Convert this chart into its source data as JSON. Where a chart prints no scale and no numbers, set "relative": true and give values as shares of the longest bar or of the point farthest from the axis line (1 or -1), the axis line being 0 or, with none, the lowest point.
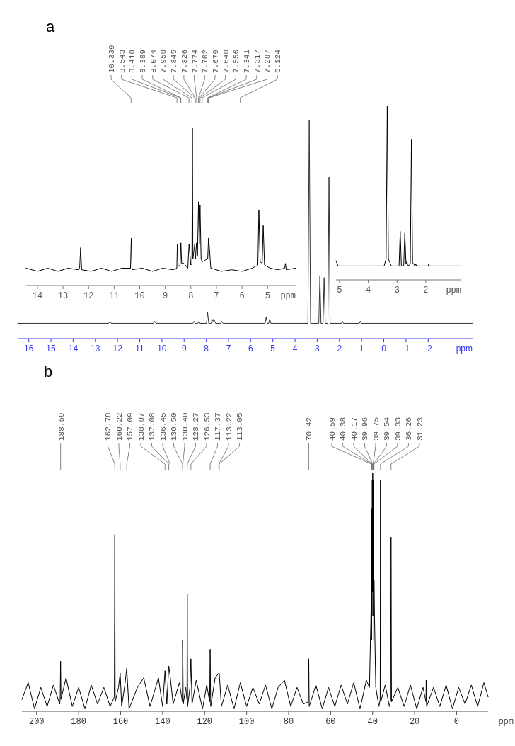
{
  "chart_data": [
    {
      "type": "line",
      "title": "a",
      "relative": true,
      "tick_labels": "x",
      "xlabel": "ppm",
      "xlim": [
        16.5,
        -4
      ],
      "xticks": [
        16,
        15,
        14,
        13,
        12,
        11,
        10,
        9,
        8,
        7,
        6,
        5,
        4,
        3,
        2,
        1,
        0,
        -1,
        -2
      ],
      "series": [
        {
          "color": "#333333",
          "x": [
            16.5,
            12.4,
            12.34,
            12.28,
            10.39,
            10.33,
            10.27,
            8.6,
            8.55,
            8.5,
            8.38,
            8.33,
            8.28,
            7.99,
            7.94,
            7.89,
            7.78,
            7.74,
            7.7,
            7.66,
            7.62,
            7.58,
            7.35,
            7.3,
            7.25,
            5.35,
            5.3,
            5.25,
            5.19,
            5.14,
            5.09,
            3.42,
            3.36,
            3.3,
            2.93,
            2.88,
            2.83,
            2.74,
            2.69,
            2.64,
            2.52,
            2.47,
            2.42,
            1.9,
            1.86,
            1.82,
            1.1,
            1.06,
            1.02,
            -4
          ],
          "values": [
            0.07,
            0.07,
            0.08,
            0.07,
            0.07,
            0.08,
            0.07,
            0.07,
            0.08,
            0.07,
            0.07,
            0.08,
            0.07,
            0.07,
            0.12,
            0.07,
            0.07,
            0.09,
            0.08,
            0.09,
            0.08,
            0.07,
            0.07,
            0.08,
            0.07,
            0.07,
            0.1,
            0.07,
            0.07,
            0.09,
            0.07,
            0.07,
            1.0,
            0.07,
            0.07,
            0.29,
            0.07,
            0.07,
            0.28,
            0.07,
            0.07,
            0.74,
            0.07,
            0.07,
            0.08,
            0.07,
            0.07,
            0.08,
            0.07,
            0.07
          ]
        }
      ]
    },
    {
      "type": "line",
      "relative": true,
      "tick_labels": "x",
      "xlabel": "ppm",
      "xlim": [
        14.44,
        3.9
      ],
      "xticks": [
        14,
        13,
        12,
        11,
        10,
        9,
        8,
        7,
        6,
        5
      ],
      "series": [
        {
          "color": "#000000",
          "x": [
            14.44,
            14.0,
            13.6,
            13.2,
            12.8,
            12.4,
            12.35,
            12.31,
            12.27,
            11.9,
            11.5,
            11.1,
            10.7,
            10.36,
            10.33,
            10.3,
            9.9,
            9.5,
            9.1,
            8.7,
            8.55,
            8.53,
            8.5,
            8.42,
            8.39,
            8.36,
            8.27,
            8.12,
            8.07,
            8.0,
            7.96,
            7.94,
            7.92,
            7.85,
            7.82,
            7.78,
            7.74,
            7.7,
            7.67,
            7.64,
            7.6,
            7.56,
            7.34,
            7.31,
            7.28,
            7.22,
            6.8,
            6.4,
            6.0,
            5.6,
            5.38,
            5.34,
            5.29,
            5.21,
            5.17,
            5.12,
            4.9,
            4.6,
            4.33,
            4.3,
            4.27,
            3.9
          ],
          "values": [
            0.11,
            0.09,
            0.11,
            0.09,
            0.11,
            0.1,
            0.11,
            0.24,
            0.1,
            0.09,
            0.11,
            0.09,
            0.11,
            0.11,
            0.3,
            0.1,
            0.11,
            0.09,
            0.11,
            0.1,
            0.11,
            0.26,
            0.12,
            0.13,
            0.27,
            0.14,
            0.14,
            0.11,
            0.26,
            0.13,
            0.14,
            1.0,
            0.17,
            0.26,
            0.17,
            0.27,
            0.19,
            0.53,
            0.26,
            0.51,
            0.17,
            0.15,
            0.17,
            0.3,
            0.25,
            0.11,
            0.09,
            0.1,
            0.09,
            0.11,
            0.13,
            0.48,
            0.15,
            0.14,
            0.38,
            0.13,
            0.11,
            0.1,
            0.11,
            0.14,
            0.1,
            0.11
          ]
        }
      ],
      "annotations": [
        {
          "text": "10.339",
          "x": 10.339
        },
        {
          "text": "8.543",
          "x": 8.543
        },
        {
          "text": "8.410",
          "x": 8.41
        },
        {
          "text": "8.389",
          "x": 8.389
        },
        {
          "text": "8.074",
          "x": 8.074
        },
        {
          "text": "7.958",
          "x": 7.958
        },
        {
          "text": "7.845",
          "x": 7.845
        },
        {
          "text": "7.826",
          "x": 7.826
        },
        {
          "text": "7.774",
          "x": 7.774
        },
        {
          "text": "7.702",
          "x": 7.702
        },
        {
          "text": "7.679",
          "x": 7.679
        },
        {
          "text": "7.640",
          "x": 7.64
        },
        {
          "text": "7.556",
          "x": 7.556
        },
        {
          "text": "7.341",
          "x": 7.341
        },
        {
          "text": "7.317",
          "x": 7.317
        },
        {
          "text": "7.287",
          "x": 7.287
        },
        "6.124"
      ]
    },
    {
      "type": "line",
      "relative": true,
      "tick_labels": "x",
      "xlabel": "ppm",
      "xlim": [
        5.12,
        0.77
      ],
      "xticks": [
        5,
        4,
        3,
        2
      ],
      "series": [
        {
          "color": "#000000",
          "x": [
            5.12,
            5.05,
            4.0,
            3.45,
            3.38,
            3.34,
            3.3,
            3.2,
            2.93,
            2.89,
            2.85,
            2.77,
            2.73,
            2.69,
            2.66,
            2.63,
            2.54,
            2.5,
            2.46,
            2.38,
            2.35,
            2.32,
            1.92,
            1.9,
            1.88,
            0.77
          ],
          "values": [
            0.11,
            0.08,
            0.08,
            0.08,
            0.12,
            1.0,
            0.12,
            0.08,
            0.08,
            0.28,
            0.08,
            0.08,
            0.27,
            0.09,
            0.11,
            0.08,
            0.09,
            0.81,
            0.1,
            0.08,
            0.09,
            0.08,
            0.08,
            0.09,
            0.08,
            0.08
          ]
        }
      ]
    },
    {
      "type": "line",
      "title": "b",
      "relative": true,
      "tick_labels": "x",
      "xlabel": "ppm",
      "xlim": [
        207,
        -15
      ],
      "xticks": [
        200,
        180,
        160,
        140,
        120,
        100,
        80,
        60,
        40,
        20,
        0
      ],
      "series": [
        {
          "color": "#000000",
          "x": [
            207,
            204,
            201,
            198,
            195,
            192,
            189,
            188.8,
            188.59,
            188.4,
            186,
            183,
            180,
            177,
            174,
            171,
            168,
            165,
            163,
            162.78,
            162.6,
            161,
            160.22,
            159.5,
            158,
            157.09,
            156,
            152,
            149,
            146,
            142,
            140,
            138.87,
            138,
            137.08,
            136.45,
            135,
            132,
            130.6,
            130.5,
            130.4,
            130.2,
            129,
            128.4,
            128.27,
            128.1,
            127,
            126.53,
            126,
            124,
            121,
            119,
            117.6,
            117.37,
            117.1,
            115,
            113.22,
            113.05,
            112,
            109,
            106,
            103,
            100,
            97,
            94,
            91,
            88,
            85,
            82,
            79,
            76,
            73,
            70.6,
            70.42,
            70.2,
            67,
            64,
            61,
            58,
            55,
            52,
            49,
            46,
            43,
            41.5,
            40.8,
            40.59,
            40.48,
            40.38,
            40.28,
            40.17,
            40.06,
            39.96,
            39.86,
            39.75,
            39.64,
            39.54,
            39.44,
            39.33,
            39.1,
            38.5,
            37,
            36.4,
            36.26,
            36.1,
            34,
            32,
            31.4,
            31.23,
            31.0,
            28,
            25,
            22,
            19,
            16,
            14.6,
            14.5,
            14.3,
            11,
            8,
            5,
            2,
            -1,
            -4,
            -7,
            -10,
            -13,
            -15
          ],
          "values": [
            0.05,
            0.12,
            0.01,
            0.1,
            0.02,
            0.11,
            0.03,
            0.05,
            0.21,
            0.05,
            0.14,
            0.02,
            0.1,
            0.01,
            0.11,
            0.03,
            0.1,
            0.02,
            0.06,
            0.74,
            0.04,
            0.1,
            0.16,
            0.02,
            0.11,
            0.18,
            0.01,
            0.1,
            0.14,
            0.02,
            0.14,
            0.02,
            0.17,
            0.03,
            0.19,
            0.15,
            0.03,
            0.12,
            0.04,
            0.3,
            0.25,
            0.03,
            0.1,
            0.05,
            0.49,
            0.02,
            0.1,
            0.22,
            0.03,
            0.13,
            0.01,
            0.11,
            0.04,
            0.26,
            0.02,
            0.14,
            0.16,
            0.16,
            0.02,
            0.11,
            0.01,
            0.12,
            0.02,
            0.1,
            0.03,
            0.11,
            0.01,
            0.1,
            0.13,
            0.02,
            0.1,
            0.03,
            0.04,
            0.22,
            0.02,
            0.11,
            0.01,
            0.1,
            0.02,
            0.11,
            0.03,
            0.12,
            0.01,
            0.13,
            0.1,
            0.4,
            0.55,
            0.3,
            0.85,
            0.4,
            0.97,
            0.5,
            1.0,
            0.5,
            0.97,
            0.4,
            0.85,
            0.3,
            0.55,
            0.4,
            0.1,
            0.02,
            0.05,
            0.97,
            0.04,
            0.11,
            0.02,
            0.05,
            0.73,
            0.04,
            0.1,
            0.02,
            0.11,
            0.01,
            0.1,
            0.04,
            0.13,
            0.02,
            0.1,
            0.02,
            0.11,
            0.01,
            0.1,
            0.03,
            0.11,
            0.02,
            0.12,
            0.06
          ]
        }
      ],
      "annotations": [
        {
          "text": "188.59",
          "x": 188.59
        },
        {
          "text": "162.78",
          "x": 162.78
        },
        {
          "text": "160.22",
          "x": 160.22
        },
        {
          "text": "157.09",
          "x": 157.09
        },
        {
          "text": "138.87",
          "x": 138.87
        },
        {
          "text": "137.08",
          "x": 137.08
        },
        {
          "text": "136.45",
          "x": 136.45
        },
        {
          "text": "130.50",
          "x": 130.5
        },
        {
          "text": "130.40",
          "x": 130.4
        },
        {
          "text": "128.27",
          "x": 128.27
        },
        {
          "text": "126.53",
          "x": 126.53
        },
        {
          "text": "117.37",
          "x": 117.37
        },
        {
          "text": "113.22",
          "x": 113.22
        },
        {
          "text": "113.05",
          "x": 113.05
        },
        {
          "text": "70.42",
          "x": 70.42
        },
        {
          "text": "40.59",
          "x": 40.59
        },
        {
          "text": "40.38",
          "x": 40.38
        },
        {
          "text": "40.17",
          "x": 40.17
        },
        {
          "text": "39.96",
          "x": 39.96
        },
        {
          "text": "39.75",
          "x": 39.75
        },
        {
          "text": "39.54",
          "x": 39.54
        },
        {
          "text": "39.33",
          "x": 39.33
        },
        {
          "text": "36.26",
          "x": 36.26
        },
        {
          "text": "31.23",
          "x": 31.23
        }
      ]
    }
  ]
}
